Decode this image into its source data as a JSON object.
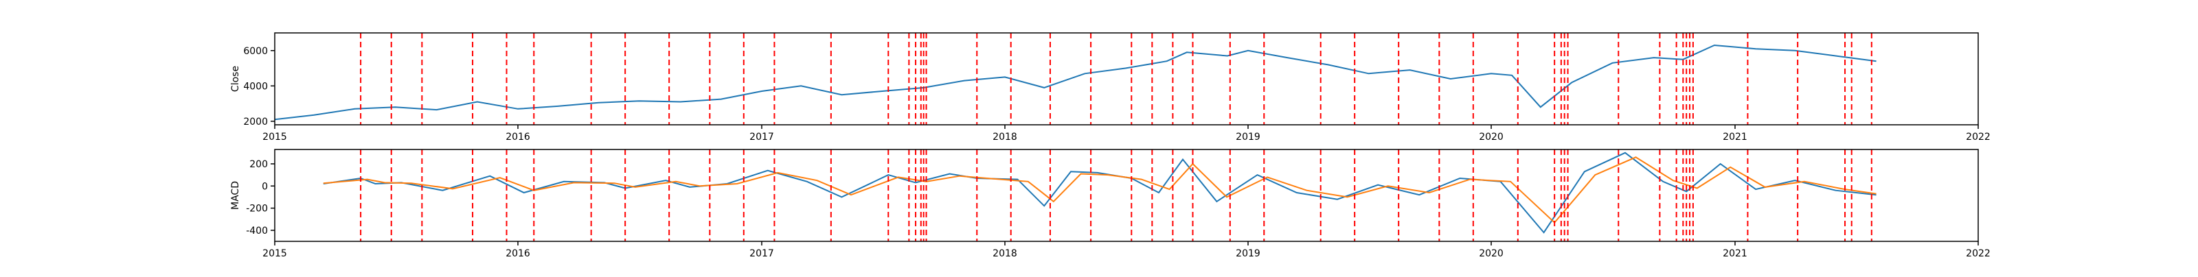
{
  "chart_data": [
    {
      "type": "line",
      "ylabel": "Close",
      "xlim": [
        "2015-01-01",
        "2022-01-01"
      ],
      "ylim": [
        1800,
        7000
      ],
      "x_ticks": [
        "2015",
        "2016",
        "2017",
        "2018",
        "2019",
        "2020",
        "2021",
        "2022"
      ],
      "y_ticks": [
        2000,
        4000,
        6000
      ],
      "grid": false,
      "series": [
        {
          "color": "#1f77b4",
          "points": [
            [
              "2015-01-01",
              2100
            ],
            [
              "2015-03-01",
              2350
            ],
            [
              "2015-05-01",
              2700
            ],
            [
              "2015-07-01",
              2800
            ],
            [
              "2015-09-01",
              2650
            ],
            [
              "2015-11-01",
              3100
            ],
            [
              "2016-01-01",
              2700
            ],
            [
              "2016-03-01",
              2850
            ],
            [
              "2016-05-01",
              3050
            ],
            [
              "2016-07-01",
              3150
            ],
            [
              "2016-09-01",
              3100
            ],
            [
              "2016-11-01",
              3250
            ],
            [
              "2017-01-01",
              3700
            ],
            [
              "2017-03-01",
              4000
            ],
            [
              "2017-05-01",
              3500
            ],
            [
              "2017-07-01",
              3700
            ],
            [
              "2017-09-01",
              3900
            ],
            [
              "2017-11-01",
              4300
            ],
            [
              "2018-01-01",
              4500
            ],
            [
              "2018-03-01",
              3900
            ],
            [
              "2018-05-01",
              4700
            ],
            [
              "2018-07-01",
              5000
            ],
            [
              "2018-08-01",
              5200
            ],
            [
              "2018-09-01",
              5400
            ],
            [
              "2018-10-01",
              5900
            ],
            [
              "2018-12-01",
              5700
            ],
            [
              "2019-01-01",
              6000
            ],
            [
              "2019-03-01",
              5600
            ],
            [
              "2019-05-01",
              5200
            ],
            [
              "2019-07-01",
              4700
            ],
            [
              "2019-09-01",
              4900
            ],
            [
              "2019-11-01",
              4400
            ],
            [
              "2020-01-01",
              4700
            ],
            [
              "2020-02-01",
              4600
            ],
            [
              "2020-03-15",
              2800
            ],
            [
              "2020-05-01",
              4200
            ],
            [
              "2020-07-01",
              5300
            ],
            [
              "2020-09-01",
              5600
            ],
            [
              "2020-10-15",
              5500
            ],
            [
              "2020-12-01",
              6300
            ],
            [
              "2021-02-01",
              6100
            ],
            [
              "2021-04-01",
              6000
            ],
            [
              "2021-06-01",
              5700
            ],
            [
              "2021-08-01",
              5400
            ]
          ]
        }
      ],
      "vlines_color": "#ff0000"
    },
    {
      "type": "line",
      "ylabel": "MACD",
      "xlim": [
        "2015-01-01",
        "2022-01-01"
      ],
      "ylim": [
        -500,
        330
      ],
      "x_ticks": [
        "2015",
        "2016",
        "2017",
        "2018",
        "2019",
        "2020",
        "2021",
        "2022"
      ],
      "y_ticks": [
        -400,
        -200,
        0,
        200
      ],
      "grid": false,
      "series": [
        {
          "color": "#1f77b4",
          "points": [
            [
              "2015-03-15",
              20
            ],
            [
              "2015-05-10",
              70
            ],
            [
              "2015-06-01",
              20
            ],
            [
              "2015-07-10",
              30
            ],
            [
              "2015-09-10",
              -40
            ],
            [
              "2015-11-20",
              90
            ],
            [
              "2016-01-10",
              -60
            ],
            [
              "2016-03-10",
              40
            ],
            [
              "2016-05-10",
              30
            ],
            [
              "2016-06-10",
              -20
            ],
            [
              "2016-08-10",
              50
            ],
            [
              "2016-09-15",
              -10
            ],
            [
              "2016-11-10",
              20
            ],
            [
              "2017-01-10",
              140
            ],
            [
              "2017-03-10",
              40
            ],
            [
              "2017-05-01",
              -100
            ],
            [
              "2017-07-10",
              100
            ],
            [
              "2017-08-20",
              30
            ],
            [
              "2017-10-10",
              110
            ],
            [
              "2017-11-20",
              70
            ],
            [
              "2018-01-20",
              60
            ],
            [
              "2018-03-01",
              -180
            ],
            [
              "2018-04-10",
              130
            ],
            [
              "2018-05-20",
              120
            ],
            [
              "2018-07-10",
              70
            ],
            [
              "2018-08-20",
              -60
            ],
            [
              "2018-09-25",
              240
            ],
            [
              "2018-11-15",
              -140
            ],
            [
              "2019-01-15",
              100
            ],
            [
              "2019-03-15",
              -60
            ],
            [
              "2019-05-15",
              -120
            ],
            [
              "2019-07-15",
              10
            ],
            [
              "2019-09-15",
              -80
            ],
            [
              "2019-11-15",
              70
            ],
            [
              "2020-01-15",
              40
            ],
            [
              "2020-03-20",
              -420
            ],
            [
              "2020-05-20",
              130
            ],
            [
              "2020-07-20",
              300
            ],
            [
              "2020-09-15",
              40
            ],
            [
              "2020-10-20",
              -50
            ],
            [
              "2020-12-10",
              200
            ],
            [
              "2021-02-01",
              -30
            ],
            [
              "2021-04-01",
              50
            ],
            [
              "2021-06-01",
              -40
            ],
            [
              "2021-08-01",
              -80
            ]
          ]
        },
        {
          "color": "#ff7f0e",
          "points": [
            [
              "2015-03-15",
              25
            ],
            [
              "2015-05-20",
              60
            ],
            [
              "2015-06-15",
              30
            ],
            [
              "2015-07-25",
              25
            ],
            [
              "2015-09-25",
              -25
            ],
            [
              "2015-12-05",
              75
            ],
            [
              "2016-01-25",
              -40
            ],
            [
              "2016-03-25",
              30
            ],
            [
              "2016-05-25",
              25
            ],
            [
              "2016-06-25",
              -10
            ],
            [
              "2016-08-25",
              40
            ],
            [
              "2016-09-30",
              0
            ],
            [
              "2016-11-25",
              20
            ],
            [
              "2017-01-25",
              120
            ],
            [
              "2017-03-25",
              50
            ],
            [
              "2017-05-15",
              -80
            ],
            [
              "2017-07-25",
              80
            ],
            [
              "2017-09-05",
              40
            ],
            [
              "2017-10-25",
              90
            ],
            [
              "2017-12-05",
              70
            ],
            [
              "2018-02-05",
              40
            ],
            [
              "2018-03-15",
              -140
            ],
            [
              "2018-04-25",
              110
            ],
            [
              "2018-06-05",
              100
            ],
            [
              "2018-07-25",
              60
            ],
            [
              "2018-09-05",
              -30
            ],
            [
              "2018-10-10",
              200
            ],
            [
              "2018-11-30",
              -100
            ],
            [
              "2019-01-30",
              80
            ],
            [
              "2019-03-30",
              -40
            ],
            [
              "2019-05-30",
              -100
            ],
            [
              "2019-07-30",
              0
            ],
            [
              "2019-09-30",
              -60
            ],
            [
              "2019-11-30",
              60
            ],
            [
              "2020-01-30",
              40
            ],
            [
              "2020-04-05",
              -330
            ],
            [
              "2020-06-05",
              100
            ],
            [
              "2020-08-05",
              260
            ],
            [
              "2020-09-30",
              50
            ],
            [
              "2020-11-05",
              -20
            ],
            [
              "2020-12-25",
              170
            ],
            [
              "2021-02-15",
              -10
            ],
            [
              "2021-04-15",
              40
            ],
            [
              "2021-06-15",
              -30
            ],
            [
              "2021-08-01",
              -70
            ]
          ]
        }
      ],
      "vlines_color": "#ff0000"
    }
  ],
  "event_dates": [
    "2015-05-10",
    "2015-06-25",
    "2015-08-10",
    "2015-10-25",
    "2015-12-15",
    "2016-01-25",
    "2016-04-20",
    "2016-06-10",
    "2016-08-15",
    "2016-10-15",
    "2016-12-05",
    "2017-01-20",
    "2017-04-15",
    "2017-07-10",
    "2017-08-10",
    "2017-08-20",
    "2017-08-28",
    "2017-09-01",
    "2017-09-05",
    "2017-11-20",
    "2018-01-10",
    "2018-03-10",
    "2018-05-10",
    "2018-07-10",
    "2018-08-10",
    "2018-09-10",
    "2018-10-10",
    "2018-12-05",
    "2019-01-25",
    "2019-04-20",
    "2019-06-10",
    "2019-08-15",
    "2019-10-15",
    "2019-12-05",
    "2020-02-10",
    "2020-04-05",
    "2020-04-15",
    "2020-04-20",
    "2020-04-25",
    "2020-07-10",
    "2020-09-10",
    "2020-10-05",
    "2020-10-15",
    "2020-10-20",
    "2020-10-25",
    "2020-10-30",
    "2021-01-20",
    "2021-04-05",
    "2021-06-15",
    "2021-06-25",
    "2021-07-25"
  ]
}
